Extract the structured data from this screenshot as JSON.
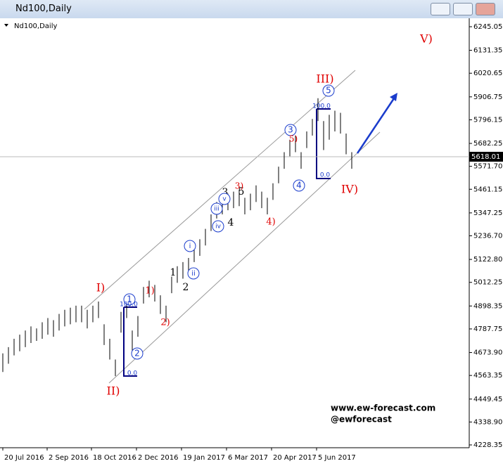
{
  "window_title": "Nd100,Daily",
  "chart_data": {
    "type": "hl",
    "title": "Nd100,Daily",
    "x": [
      0,
      4,
      8,
      12,
      16,
      20,
      24,
      28,
      32,
      36,
      40,
      44,
      48,
      52,
      56,
      60,
      64,
      68,
      72,
      76,
      80,
      84,
      88,
      92,
      96,
      100,
      104,
      108,
      112,
      116,
      120,
      124,
      128,
      132,
      136,
      140,
      144,
      148,
      152,
      156,
      160,
      164,
      168,
      172,
      176,
      180,
      184,
      188,
      192,
      196,
      200,
      204,
      208,
      212,
      216,
      220,
      224,
      228,
      232,
      236,
      240,
      244,
      248
    ],
    "high": [
      4670,
      4700,
      4740,
      4760,
      4780,
      4800,
      4790,
      4820,
      4840,
      4830,
      4860,
      4880,
      4890,
      4900,
      4900,
      4880,
      4900,
      4920,
      4810,
      4740,
      4640,
      4870,
      4920,
      4780,
      4850,
      4990,
      5020,
      5000,
      4950,
      4900,
      5040,
      5090,
      5110,
      5130,
      5190,
      5220,
      5270,
      5340,
      5400,
      5420,
      5440,
      5450,
      5460,
      5420,
      5440,
      5480,
      5450,
      5420,
      5490,
      5570,
      5640,
      5700,
      5720,
      5640,
      5740,
      5800,
      5900,
      5790,
      5820,
      5840,
      5830,
      5730,
      5640
    ],
    "low": [
      4580,
      4620,
      4660,
      4680,
      4700,
      4720,
      4730,
      4740,
      4760,
      4750,
      4780,
      4800,
      4810,
      4820,
      4820,
      4790,
      4820,
      4840,
      4710,
      4640,
      4560,
      4770,
      4840,
      4670,
      4750,
      4910,
      4940,
      4920,
      4860,
      4820,
      4960,
      5010,
      5030,
      5050,
      5110,
      5140,
      5190,
      5260,
      5320,
      5340,
      5360,
      5370,
      5380,
      5340,
      5360,
      5400,
      5370,
      5340,
      5410,
      5490,
      5560,
      5620,
      5640,
      5560,
      5660,
      5720,
      5790,
      5650,
      5700,
      5740,
      5730,
      5630,
      5560
    ],
    "color": "#000000",
    "xlim": [
      -2,
      331.5
    ],
    "xticks": [
      {
        "value": 0,
        "label": "20 Jul 2016"
      },
      {
        "value": 31.5,
        "label": "2 Sep 2016"
      },
      {
        "value": 63,
        "label": "18 Oct 2016"
      },
      {
        "value": 95,
        "label": "2 Dec 2016"
      },
      {
        "value": 127,
        "label": "19 Jan 2017"
      },
      {
        "value": 159,
        "label": "6 Mar 2017"
      },
      {
        "value": 191,
        "label": "20 Apr 2017"
      },
      {
        "value": 223,
        "label": "5 Jun 2017"
      }
    ],
    "ylim": [
      4221.6,
      6278.9
    ],
    "yticks": [
      6245.05,
      6131.35,
      6020.65,
      5906.75,
      5796.15,
      5682.25,
      {
        "value": 5571.7,
        "label": "5571.70"
      },
      5461.15,
      5347.25,
      {
        "value": 5236.7,
        "label": "5236.70"
      },
      {
        "value": 5122.8,
        "label": "5122.80"
      },
      5012.25,
      4898.35,
      4787.75,
      {
        "value": 4673.9,
        "label": "4673.90"
      },
      4563.35,
      4449.45,
      {
        "value": 4338.9,
        "label": "4338.90"
      },
      4228.35
    ],
    "current_price": 5618.01,
    "annotations": [
      "V)",
      "III)",
      "5",
      "3",
      "5)",
      "4",
      "IV)",
      "0.0",
      "100.0",
      "3",
      "5",
      "3)",
      "v",
      "iii",
      "4",
      "iv",
      "4)",
      "i",
      "ii",
      "1",
      "2",
      "I)",
      "1)",
      "1",
      "100.0",
      "2)",
      "2",
      "0.0",
      "II)",
      "www.ew-forecast.com",
      "@ewforecast"
    ]
  }
}
